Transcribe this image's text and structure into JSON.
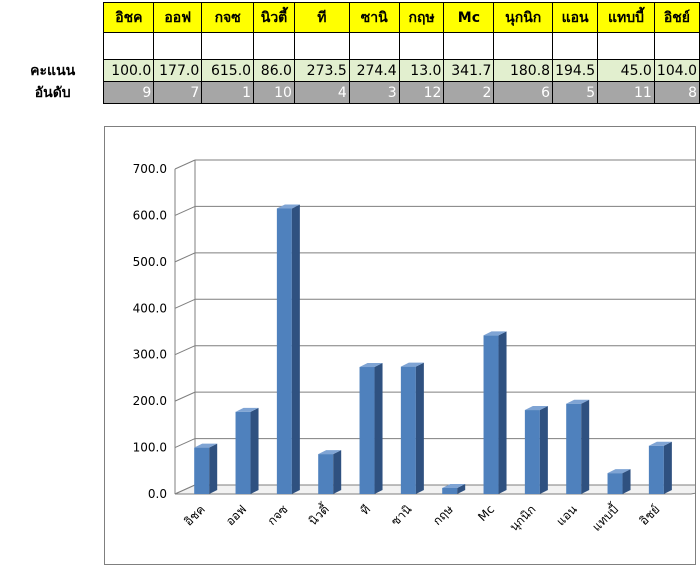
{
  "table": {
    "row_labels": {
      "score": "คะแนน",
      "rank": "อันดับ"
    },
    "columns": [
      {
        "name": "อิชค",
        "score": "100.0",
        "rank": "9"
      },
      {
        "name": "ออฟ",
        "score": "177.0",
        "rank": "7"
      },
      {
        "name": "กจซ",
        "score": "615.0",
        "rank": "1"
      },
      {
        "name": "นิวตี้",
        "score": "86.0",
        "rank": "10"
      },
      {
        "name": "ที",
        "score": "273.5",
        "rank": "4"
      },
      {
        "name": "ซานิ",
        "score": "274.4",
        "rank": "3"
      },
      {
        "name": "กฤษ",
        "score": "13.0",
        "rank": "12"
      },
      {
        "name": "Mc",
        "score": "341.7",
        "rank": "2"
      },
      {
        "name": "นุกนิก",
        "score": "180.8",
        "rank": "6"
      },
      {
        "name": "แอน",
        "score": "194.5",
        "rank": "5"
      },
      {
        "name": "แทบบี้",
        "score": "45.0",
        "rank": "11"
      },
      {
        "name": "อิชย์",
        "score": "104.0",
        "rank": "8"
      }
    ]
  },
  "chart_data": {
    "type": "bar",
    "categories": [
      "อิชค",
      "ออฟ",
      "กจซ",
      "นิวตี้",
      "ที",
      "ซานิ",
      "กฤษ",
      "Mc",
      "นุกนิก",
      "แอน",
      "แทบบี้",
      "อิชย์"
    ],
    "values": [
      100.0,
      177.0,
      615.0,
      86.0,
      273.5,
      274.4,
      13.0,
      341.7,
      180.8,
      194.5,
      45.0,
      104.0
    ],
    "ylim": [
      0,
      700
    ],
    "yticks": [
      "0.0",
      "100.0",
      "200.0",
      "300.0",
      "400.0",
      "500.0",
      "600.0",
      "700.0"
    ],
    "grid": true,
    "legend": "none",
    "bar_color": "#4f81bd"
  }
}
